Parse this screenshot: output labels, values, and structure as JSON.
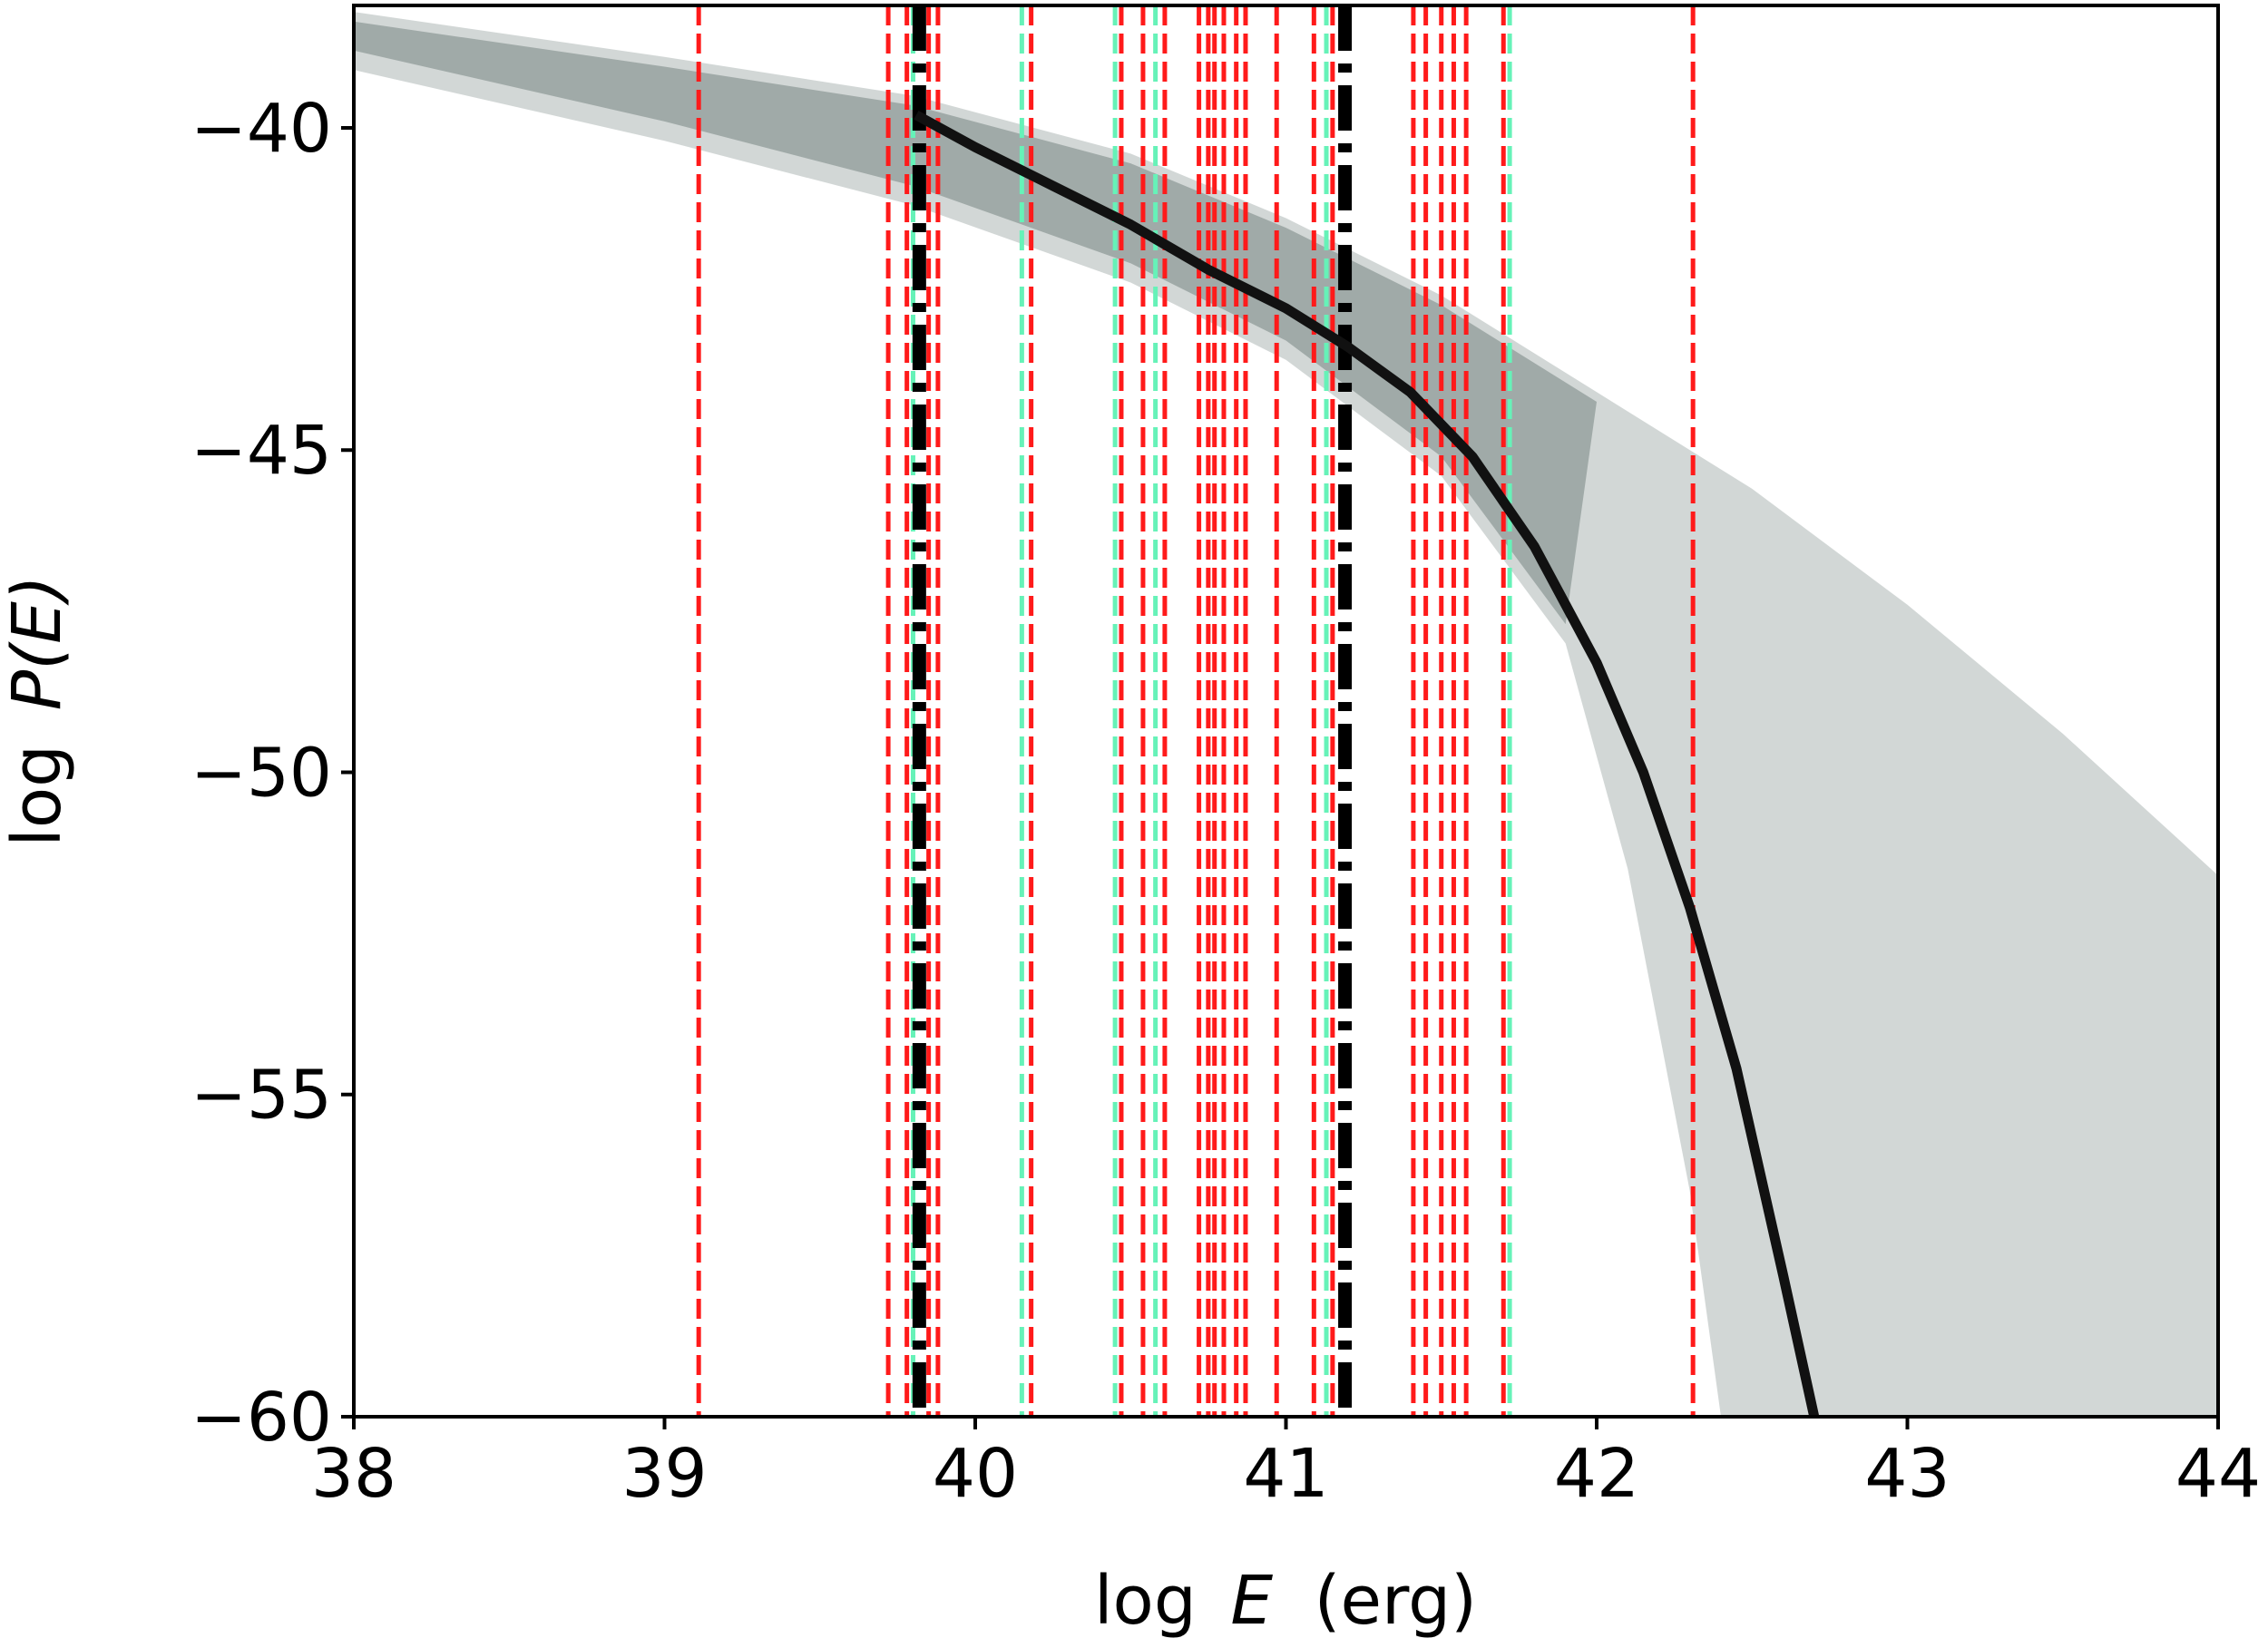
{
  "chart_data": {
    "type": "line",
    "title": "",
    "xlabel_prefix": "log",
    "xlabel_var": "E",
    "xlabel_suffix": "(erg)",
    "ylabel_prefix": "log",
    "ylabel_var": "P(E)",
    "xlim": [
      38,
      44
    ],
    "ylim": [
      -60,
      -38.1
    ],
    "xticks": [
      38,
      39,
      40,
      41,
      42,
      43,
      44
    ],
    "yticks": [
      -60,
      -55,
      -50,
      -45,
      -40
    ],
    "xtick_labels": [
      "38",
      "39",
      "40",
      "41",
      "42",
      "43",
      "44"
    ],
    "ytick_labels": [
      "−60",
      "−55",
      "−50",
      "−45",
      "−40"
    ],
    "grid": false,
    "colors": {
      "band": "#7f8c89",
      "best_fit": "#111111",
      "red_lines": "#ff1a1a",
      "green_lines": "#66f2b8",
      "black_dashdot": "#000000"
    },
    "posterior_band": {
      "description_color": "gray",
      "upper_edge": [
        {
          "x": 38.0,
          "y": -38.2
        },
        {
          "x": 39.0,
          "y": -38.9
        },
        {
          "x": 39.8,
          "y": -39.5
        },
        {
          "x": 40.5,
          "y": -40.4
        },
        {
          "x": 41.0,
          "y": -41.4
        },
        {
          "x": 41.5,
          "y": -42.6
        },
        {
          "x": 42.0,
          "y": -44.1
        },
        {
          "x": 42.5,
          "y": -45.6
        },
        {
          "x": 43.0,
          "y": -47.4
        },
        {
          "x": 43.5,
          "y": -49.4
        },
        {
          "x": 44.0,
          "y": -51.6
        }
      ],
      "lower_edge": [
        {
          "x": 38.0,
          "y": -39.1
        },
        {
          "x": 39.0,
          "y": -40.2
        },
        {
          "x": 39.8,
          "y": -41.2
        },
        {
          "x": 40.5,
          "y": -42.4
        },
        {
          "x": 41.0,
          "y": -43.6
        },
        {
          "x": 41.5,
          "y": -45.4
        },
        {
          "x": 41.9,
          "y": -48.0
        },
        {
          "x": 42.1,
          "y": -51.5
        },
        {
          "x": 42.3,
          "y": -56.5
        },
        {
          "x": 42.4,
          "y": -60.0
        }
      ],
      "fan_edge": [
        {
          "x": 42.4,
          "y": -60.0
        },
        {
          "x": 44.0,
          "y": -60.0
        },
        {
          "x": 44.0,
          "y": -51.6
        }
      ]
    },
    "series": [
      {
        "role": "best-fit",
        "x": [
          39.81,
          40.0,
          40.25,
          40.5,
          40.75,
          41.0,
          41.2,
          41.4,
          41.6,
          41.8,
          42.0,
          42.15,
          42.3,
          42.45,
          42.6,
          42.7
        ],
        "y": [
          -39.8,
          -40.3,
          -40.9,
          -41.5,
          -42.2,
          -42.8,
          -43.4,
          -44.1,
          -45.1,
          -46.5,
          -48.3,
          -50.0,
          -52.1,
          -54.6,
          -57.8,
          -60.0
        ]
      }
    ],
    "red_dashed_x": [
      39.11,
      39.72,
      39.78,
      39.85,
      39.88,
      40.18,
      40.47,
      40.54,
      40.61,
      40.72,
      40.75,
      40.77,
      40.8,
      40.84,
      40.87,
      40.97,
      41.09,
      41.15,
      41.41,
      41.45,
      41.5,
      41.54,
      41.58,
      41.7,
      42.31
    ],
    "green_dashed_x": [
      39.8,
      40.15,
      40.45,
      40.58,
      41.13,
      41.72
    ],
    "black_dashdot_x": [
      39.82,
      41.19
    ]
  }
}
